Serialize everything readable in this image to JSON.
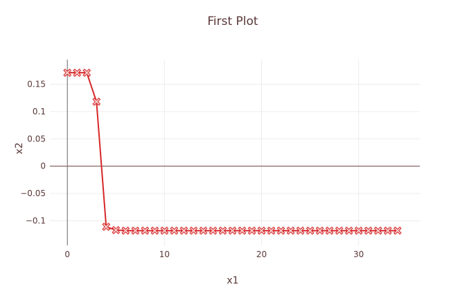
{
  "chart_data": {
    "type": "line",
    "title": "First Plot",
    "xlabel": "x1",
    "ylabel": "x2",
    "xlim": [
      -1.8,
      36.3
    ],
    "ylim": [
      -0.145,
      0.195
    ],
    "x_ticks": [
      0,
      10,
      20,
      30
    ],
    "x_tick_labels": [
      "0",
      "10",
      "20",
      "30"
    ],
    "y_ticks": [
      -0.1,
      -0.05,
      0,
      0.05,
      0.1,
      0.15
    ],
    "y_tick_labels": [
      "−0.1",
      "−0.05",
      "0",
      "0.05",
      "0.1",
      "0.15"
    ],
    "grid": true,
    "legend": "none",
    "colors": {
      "line": "#d62728",
      "marker_stroke": "#d62728",
      "marker_fill": "#f4c7c7",
      "text": "#5a3737",
      "grid": "#ececec",
      "zero_line": "#6b3a3a",
      "axis_line": "#6b6b6b"
    },
    "series": [
      {
        "marker": "x-open",
        "x": [
          0,
          1,
          2,
          3,
          4,
          5,
          6,
          7,
          8,
          9,
          10,
          11,
          12,
          13,
          14,
          15,
          16,
          17,
          18,
          19,
          20,
          21,
          22,
          23,
          24,
          25,
          26,
          27,
          28,
          29,
          30,
          31,
          32,
          33,
          34
        ],
        "y": [
          0.171,
          0.171,
          0.171,
          0.118,
          -0.111,
          -0.117,
          -0.118,
          -0.118,
          -0.118,
          -0.118,
          -0.118,
          -0.118,
          -0.118,
          -0.118,
          -0.118,
          -0.118,
          -0.118,
          -0.118,
          -0.118,
          -0.118,
          -0.118,
          -0.118,
          -0.118,
          -0.118,
          -0.118,
          -0.118,
          -0.118,
          -0.118,
          -0.118,
          -0.118,
          -0.118,
          -0.118,
          -0.118,
          -0.118,
          -0.118
        ]
      }
    ]
  }
}
